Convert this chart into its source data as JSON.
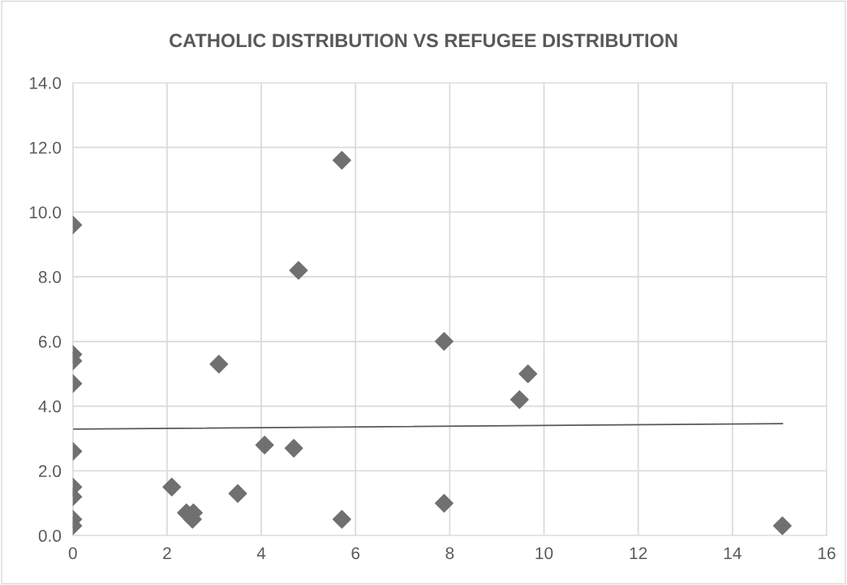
{
  "chart_data": {
    "type": "scatter",
    "title": "CATHOLIC DISTRIBUTION VS REFUGEE DISTRIBUTION",
    "xlim": [
      0,
      16
    ],
    "xticks": [
      0,
      2,
      4,
      6,
      8,
      10,
      12,
      14,
      16
    ],
    "ylim": [
      0,
      14
    ],
    "yticks": [
      {
        "value": 0,
        "label": "0.0"
      },
      {
        "value": 2,
        "label": "2.0"
      },
      {
        "value": 4,
        "label": "4.0"
      },
      {
        "value": 6,
        "label": "6.0"
      },
      {
        "value": 8,
        "label": "8.0"
      },
      {
        "value": 10,
        "label": "10.0"
      },
      {
        "value": 12,
        "label": "12.0"
      },
      {
        "value": 14,
        "label": "14.0"
      }
    ],
    "grid": true,
    "legend": false,
    "series": [
      {
        "marker": "diamond",
        "color": "#707070",
        "x": [
          0,
          0,
          0,
          0,
          0,
          0,
          0,
          0,
          0,
          2.1,
          2.41,
          2.56,
          2.54,
          3.1,
          3.5,
          4.07,
          4.69,
          4.79,
          5.71,
          5.71,
          7.88,
          7.88,
          9.66,
          9.48,
          15.06
        ],
        "values": [
          9.6,
          5.6,
          5.4,
          4.7,
          2.6,
          1.5,
          1.2,
          0.5,
          0.3,
          1.5,
          0.7,
          0.7,
          0.5,
          5.3,
          1.3,
          2.8,
          2.7,
          8.2,
          11.6,
          0.5,
          6.0,
          1.0,
          5.0,
          4.2,
          0.3
        ]
      },
      {
        "type": "line",
        "marker": "none",
        "color": "#595959",
        "x": [
          0,
          15.06
        ],
        "values": [
          3.29,
          3.46
        ]
      }
    ]
  }
}
